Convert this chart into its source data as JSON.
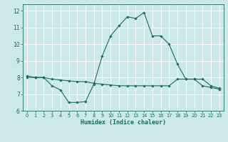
{
  "title": "",
  "xlabel": "Humidex (Indice chaleur)",
  "ylabel": "",
  "bg_color": "#cde8e8",
  "grid_color": "#b0d4d4",
  "line_color": "#1a6b5a",
  "xlim": [
    -0.5,
    23.5
  ],
  "ylim": [
    6,
    12.4
  ],
  "yticks": [
    6,
    7,
    8,
    9,
    10,
    11,
    12
  ],
  "xticks": [
    0,
    1,
    2,
    3,
    4,
    5,
    6,
    7,
    8,
    9,
    10,
    11,
    12,
    13,
    14,
    15,
    16,
    17,
    18,
    19,
    20,
    21,
    22,
    23
  ],
  "series1_x": [
    0,
    1,
    2,
    3,
    4,
    5,
    6,
    7,
    8,
    9,
    10,
    11,
    12,
    13,
    14,
    15,
    16,
    17,
    18,
    19,
    20,
    21,
    22,
    23
  ],
  "series1_y": [
    8.1,
    8.0,
    8.0,
    7.5,
    7.25,
    6.5,
    6.5,
    6.55,
    7.6,
    9.3,
    10.5,
    11.1,
    11.65,
    11.55,
    11.9,
    10.5,
    10.5,
    10.0,
    8.8,
    7.9,
    7.9,
    7.5,
    7.4,
    7.3
  ],
  "series2_x": [
    0,
    1,
    2,
    3,
    4,
    5,
    6,
    7,
    8,
    9,
    10,
    11,
    12,
    13,
    14,
    15,
    16,
    17,
    18,
    19,
    20,
    21,
    22,
    23
  ],
  "series2_y": [
    8.0,
    8.0,
    8.0,
    7.9,
    7.85,
    7.8,
    7.75,
    7.75,
    7.65,
    7.6,
    7.55,
    7.5,
    7.5,
    7.5,
    7.5,
    7.5,
    7.5,
    7.5,
    7.9,
    7.9,
    7.9,
    7.9,
    7.5,
    7.35
  ]
}
